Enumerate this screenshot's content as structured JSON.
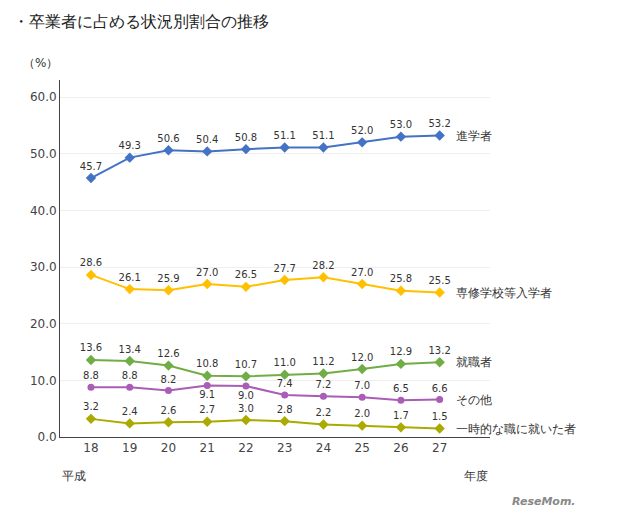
{
  "chart_data": {
    "type": "line",
    "title": "・卒業者に占める状況別割合の推移",
    "xlabel": [
      "平成",
      "年度"
    ],
    "ylabel": "（%）",
    "annotations": [
      "ReseMom."
    ],
    "x": [
      18,
      19,
      20,
      21,
      22,
      23,
      24,
      25,
      26,
      27
    ],
    "series": [
      {
        "name": "進学者",
        "color": "#4472C4",
        "marker": "diamond",
        "values": [
          45.7,
          49.3,
          50.6,
          50.4,
          50.8,
          51.1,
          51.1,
          52.0,
          53.0,
          53.2
        ],
        "value_labels": [
          "45.7",
          "49.3",
          "50.6",
          "50.4",
          "50.8",
          "51.1",
          "51.1",
          "52.0",
          "53.0",
          "53.2"
        ]
      },
      {
        "name": "専修学校等入学者",
        "color": "#FFC000",
        "marker": "diamond",
        "values": [
          28.6,
          26.1,
          25.9,
          27.0,
          26.5,
          27.7,
          28.2,
          27.0,
          25.8,
          25.5
        ],
        "value_labels": [
          "28.6",
          "26.1",
          "25.9",
          "27.0",
          "26.5",
          "27.7",
          "28.2",
          "27.0",
          "25.8",
          "25.5"
        ]
      },
      {
        "name": "就職者",
        "color": "#70AD47",
        "marker": "diamond",
        "values": [
          13.6,
          13.4,
          12.6,
          10.8,
          10.7,
          11.0,
          11.2,
          12.0,
          12.9,
          13.2
        ],
        "value_labels": [
          "13.6",
          "13.4",
          "12.6",
          "10.8",
          "10.7",
          "11.0",
          "11.2",
          "12.0",
          "12.9",
          "13.2"
        ]
      },
      {
        "name": "その他",
        "color": "#AA5DB6",
        "marker": "circle",
        "values": [
          8.8,
          8.8,
          8.2,
          9.1,
          9.0,
          7.4,
          7.2,
          7.0,
          6.5,
          6.6
        ],
        "value_labels": [
          "8.8",
          "8.8",
          "8.2",
          "9.1",
          "9.0",
          "7.4",
          "7.2",
          "7.0",
          "6.5",
          "6.6"
        ]
      },
      {
        "name": "一時的な職に就いた者",
        "color": "#AAAA00",
        "marker": "diamond",
        "values": [
          3.2,
          2.4,
          2.6,
          2.7,
          3.0,
          2.8,
          2.2,
          2.0,
          1.7,
          1.5
        ],
        "value_labels": [
          "3.2",
          "2.4",
          "2.6",
          "2.7",
          "3.0",
          "2.8",
          "2.2",
          "2.0",
          "1.7",
          "1.5"
        ]
      }
    ],
    "xlim": [
      17.2,
      28.3
    ],
    "xticks": [
      18,
      19,
      20,
      21,
      22,
      23,
      24,
      25,
      26,
      27
    ],
    "ylim": [
      0.0,
      63.0
    ],
    "yticks": [
      {
        "value": 0,
        "label": "0.0"
      },
      {
        "value": 10,
        "label": "10.0"
      },
      {
        "value": 20,
        "label": "20.0"
      },
      {
        "value": 30,
        "label": "30.0"
      },
      {
        "value": 40,
        "label": "40.0"
      },
      {
        "value": 50,
        "label": "50.0"
      },
      {
        "value": 60,
        "label": "60.0"
      }
    ],
    "grid": "y",
    "data_labels": true
  }
}
